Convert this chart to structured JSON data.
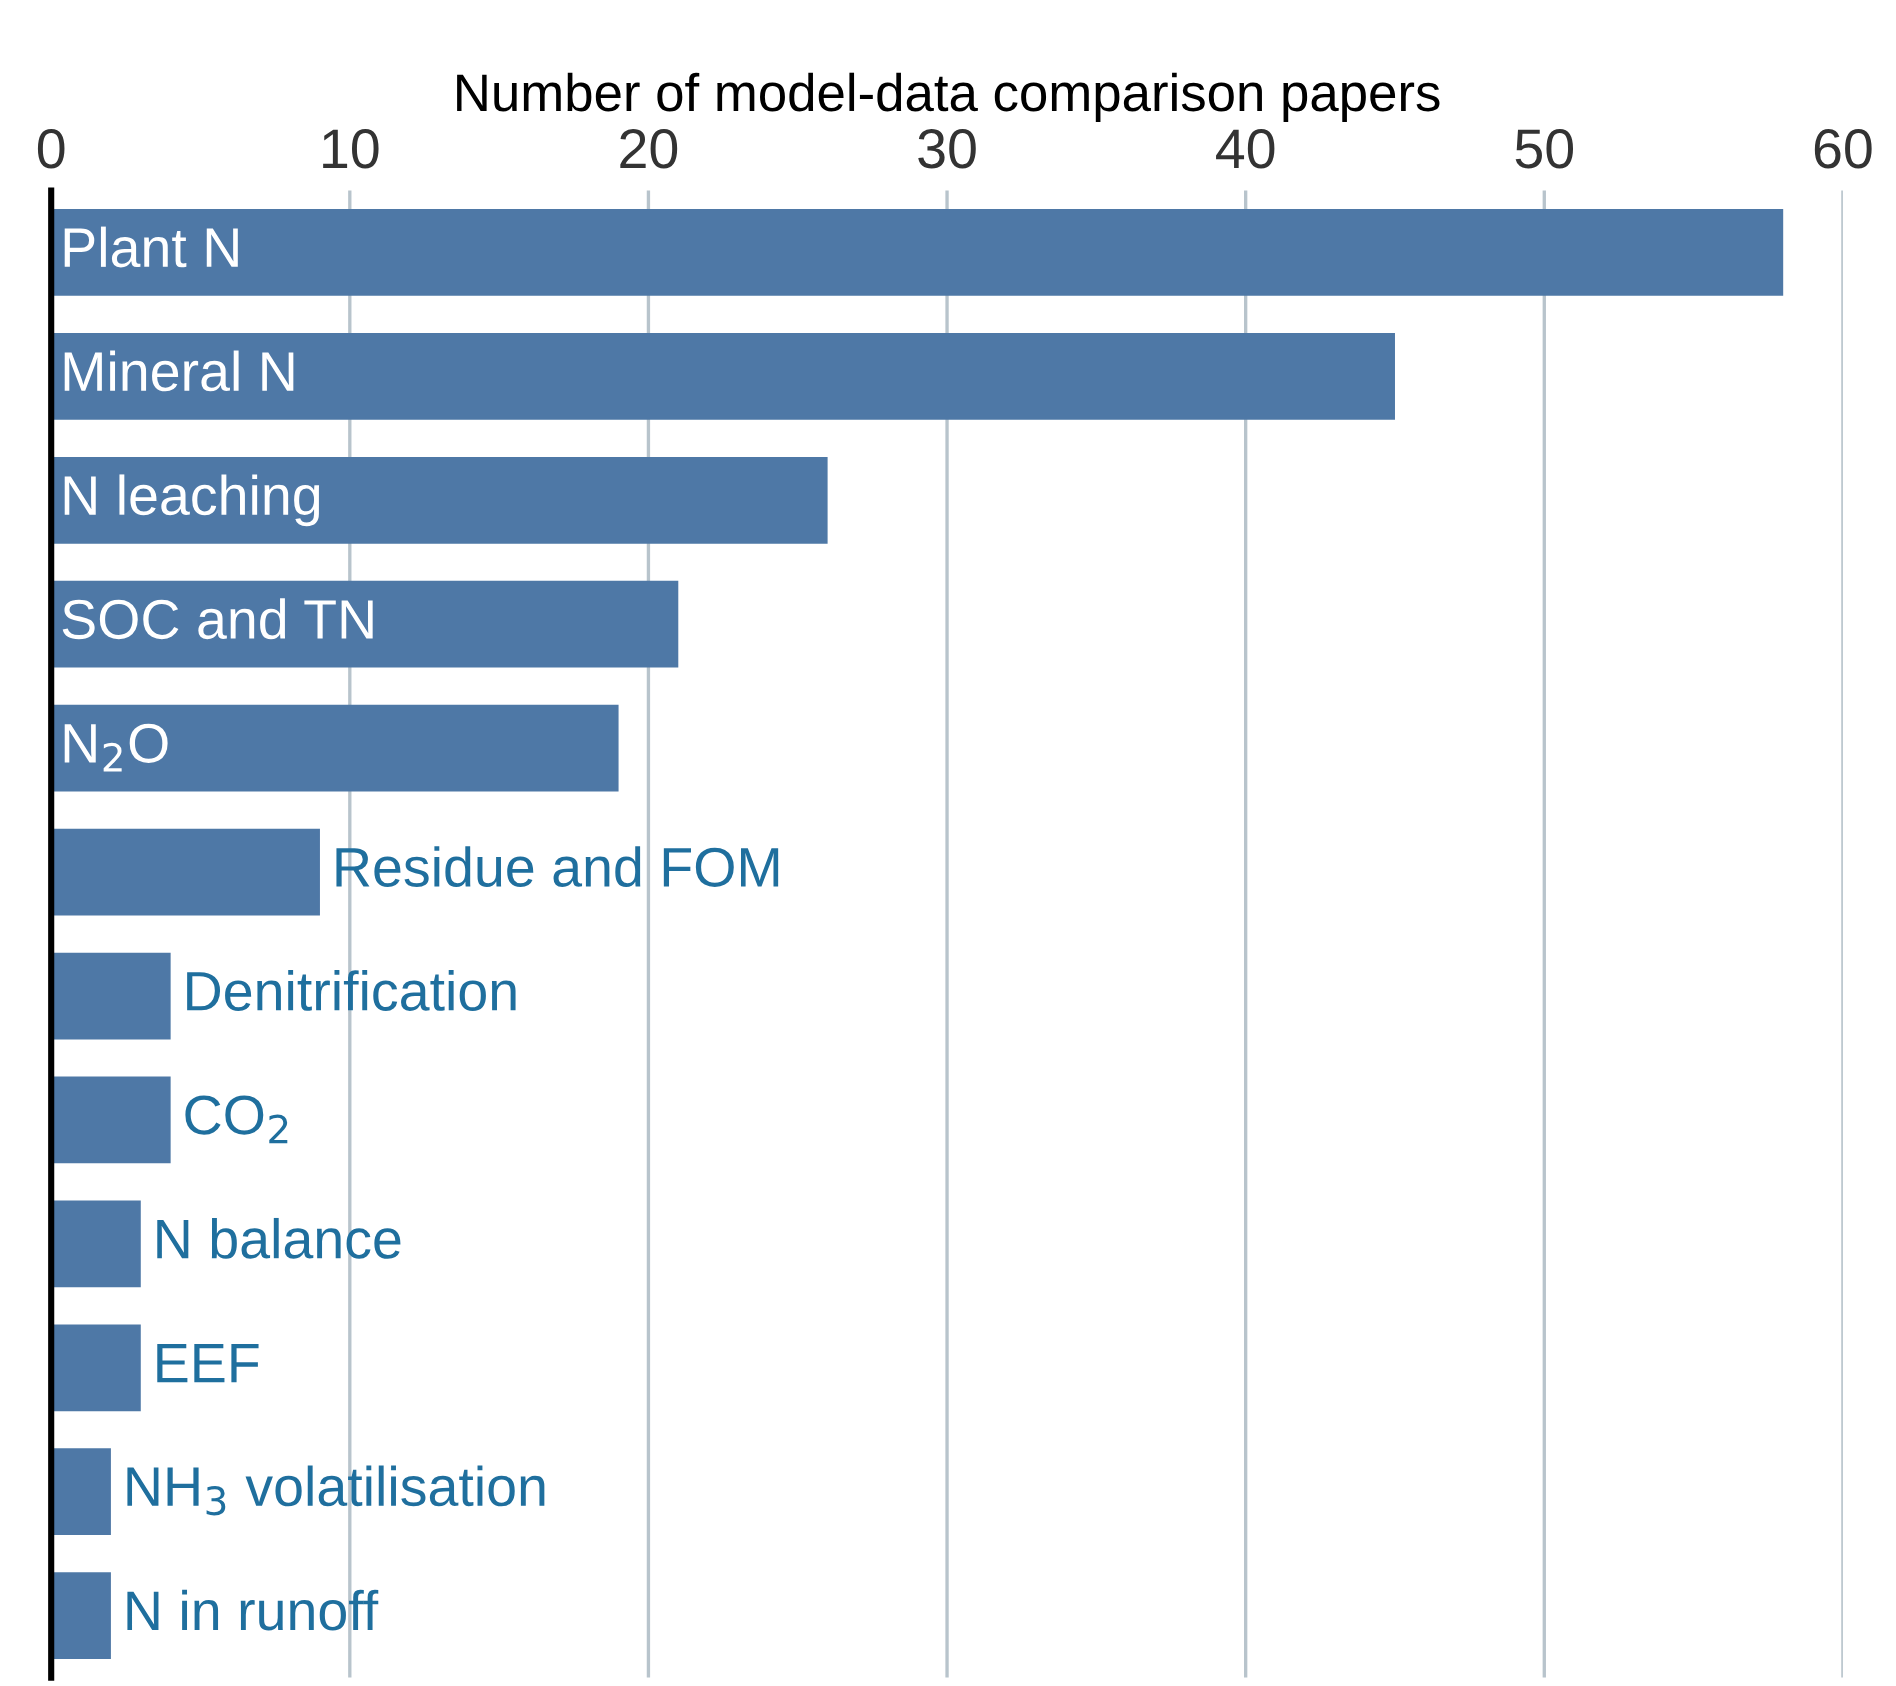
{
  "chart_data": {
    "type": "bar",
    "orientation": "horizontal",
    "xlabel": "Number of model-data comparison papers",
    "categories": [
      "Plant N",
      "Mineral N",
      "N leaching",
      "SOC and TN",
      "N$_{2}$O",
      "Residue and FOM",
      "Denitrification",
      "CO$_{2}$",
      "N balance",
      "EEF",
      "NH$_{3}$ volatilisation",
      "N in runoff"
    ],
    "values": [
      58,
      45,
      26,
      21,
      19,
      9,
      4,
      4,
      3,
      3,
      2,
      2
    ],
    "color": "#4e78a6",
    "xlim": [
      0,
      60
    ],
    "xticks": [
      0,
      10,
      20,
      30,
      40,
      50,
      60
    ],
    "grid": "x"
  }
}
